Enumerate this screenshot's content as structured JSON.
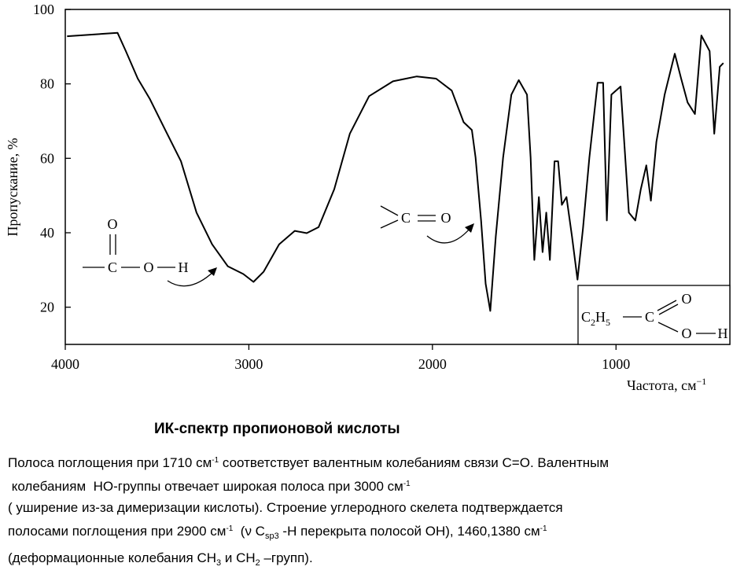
{
  "chart_data": {
    "type": "line",
    "color": "#000000",
    "ylabel": "Пропускание, %",
    "xlabel": "Частота, см",
    "xlabel_exponent": "−1",
    "xlim": [
      4000,
      380
    ],
    "ylim": [
      10,
      100
    ],
    "xticks": [
      4000,
      3000,
      2000,
      1000
    ],
    "yticks": [
      20,
      40,
      60,
      80,
      100
    ],
    "x": [
      3990,
      3715,
      3670,
      3605,
      3540,
      3455,
      3370,
      3285,
      3200,
      3115,
      3030,
      2975,
      2920,
      2835,
      2750,
      2685,
      2620,
      2535,
      2450,
      2345,
      2215,
      2085,
      1980,
      1895,
      1830,
      1785,
      1765,
      1735,
      1710,
      1685,
      1655,
      1615,
      1570,
      1530,
      1485,
      1465,
      1445,
      1420,
      1400,
      1380,
      1360,
      1335,
      1315,
      1295,
      1270,
      1240,
      1210,
      1180,
      1145,
      1100,
      1070,
      1050,
      1025,
      975,
      930,
      895,
      865,
      835,
      810,
      780,
      735,
      680,
      645,
      610,
      570,
      535,
      490,
      465,
      435,
      415
    ],
    "values": [
      92.8,
      93.7,
      88.8,
      81.4,
      76,
      67.6,
      59.2,
      45.4,
      36.9,
      31,
      28.9,
      26.8,
      29.5,
      36.9,
      40.5,
      39.9,
      41.5,
      51.7,
      66.6,
      76.7,
      80.7,
      82,
      81.4,
      78.2,
      69.7,
      67.6,
      60.2,
      43.3,
      26.3,
      19,
      39,
      60.2,
      77.1,
      81,
      77.1,
      60.2,
      32.7,
      49.6,
      34.8,
      45.4,
      32.7,
      59.2,
      59.2,
      47.5,
      49.6,
      39,
      27.4,
      41.2,
      60.2,
      80.3,
      80.3,
      43.3,
      77.1,
      79.3,
      45.4,
      43.3,
      51.7,
      58.1,
      48.6,
      64.4,
      77.1,
      88.1,
      81.4,
      75,
      71.9,
      93,
      88.8,
      66.6,
      84.6,
      85.6
    ],
    "annotations": {
      "acid_group": [
        "O",
        "C",
        "O",
        "H"
      ],
      "carbonyl": [
        "C",
        "O"
      ],
      "propionic_acid": [
        "C",
        "2",
        "H",
        "5",
        "C",
        "O",
        "O",
        "H"
      ]
    }
  },
  "caption": {
    "title": "ИК-спектр пропионовой кислоты",
    "lines": [
      [
        "Полоса поглощения при 1710 см",
        "-1",
        " соответствует валентным колебаниям связи С=О. Валентным"
      ],
      [
        " колебаниям  НО-группы отвечает широкая полоса при 3000 см",
        "-1"
      ],
      [
        "( уширение из-за димеризации кислоты). Строение углеродного скелета подтверждается"
      ],
      [
        "полосами поглощения при 2900 см",
        "-1",
        "  (ν С",
        "sp3",
        " -Н перекрыта полосой ОН), 1460,1380 см",
        "-1"
      ],
      [
        "(деформационные колебания СН",
        "3",
        " и СН",
        "2",
        " –групп)."
      ]
    ]
  }
}
